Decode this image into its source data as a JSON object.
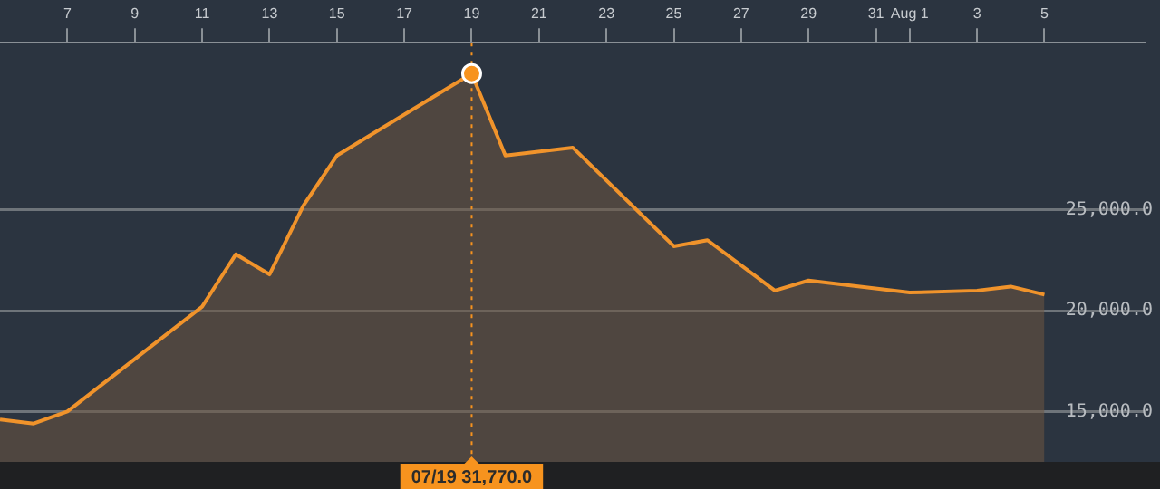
{
  "chart_data": {
    "type": "area",
    "x": [
      "--07-05",
      "--07-06",
      "--07-07",
      "--07-11",
      "--07-12",
      "--07-13",
      "--07-14",
      "--07-15",
      "--07-19",
      "--07-20",
      "--07-22",
      "--07-25",
      "--07-26",
      "--07-28",
      "--07-29",
      "--08-01",
      "--08-03",
      "--08-04",
      "--08-05"
    ],
    "series": [
      {
        "color": "#f0932b",
        "values": [
          14600,
          14400,
          15000,
          20200,
          22800,
          21800,
          25200,
          27700,
          31770,
          27700,
          28100,
          23200,
          23500,
          21000,
          21500,
          20900,
          21000,
          21200,
          20800
        ]
      }
    ],
    "xlim": [
      "--07-05",
      "--08-08"
    ],
    "xticks": [
      {
        "value": "--07-07",
        "label": "7"
      },
      {
        "value": "--07-09",
        "label": "9"
      },
      {
        "value": "--07-11",
        "label": "11"
      },
      {
        "value": "--07-13",
        "label": "13"
      },
      {
        "value": "--07-15",
        "label": "15"
      },
      {
        "value": "--07-17",
        "label": "17"
      },
      {
        "value": "--07-19",
        "label": "19"
      },
      {
        "value": "--07-21",
        "label": "21"
      },
      {
        "value": "--07-23",
        "label": "23"
      },
      {
        "value": "--07-25",
        "label": "25"
      },
      {
        "value": "--07-27",
        "label": "27"
      },
      {
        "value": "--07-29",
        "label": "29"
      },
      {
        "value": "--07-31",
        "label": "31"
      },
      {
        "value": "--08-01",
        "label": "Aug 1"
      },
      {
        "value": "--08-03",
        "label": "3"
      },
      {
        "value": "--08-05",
        "label": "5"
      }
    ],
    "ylim": [
      12500,
      33300
    ],
    "yticks": [
      {
        "value": 15000,
        "label": "15,000.0"
      },
      {
        "value": 20000,
        "label": "20,000.0"
      },
      {
        "value": 25000,
        "label": "25,000.0"
      }
    ],
    "grid": "y",
    "legend": false,
    "marker": "none",
    "line_style": "solid",
    "ref_lines": [
      {
        "axis": "x",
        "value": "--07-19",
        "label": "07/19 31,770.0",
        "color": "#f7931e",
        "line_style": "dotted"
      }
    ]
  }
}
